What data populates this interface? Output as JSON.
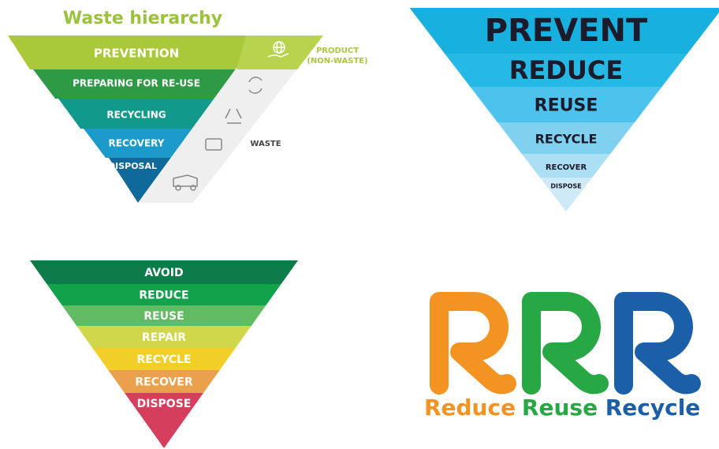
{
  "waste_hierarchy": {
    "title": "Waste hierarchy",
    "levels": [
      "PREVENTION",
      "PREPARING FOR RE-USE",
      "RECYCLING",
      "RECOVERY",
      "DISPOSAL"
    ],
    "product_label": [
      "PRODUCT",
      "(NON-WASTE)"
    ],
    "waste_label": "WASTE"
  },
  "prevent_pyramid": {
    "levels": [
      "PREVENT",
      "REDUCE",
      "REUSE",
      "RECYCLE",
      "RECOVER",
      "DISPOSE"
    ]
  },
  "avoid_pyramid": {
    "levels": [
      "AVOID",
      "REDUCE",
      "REUSE",
      "REPAIR",
      "RECYCLE",
      "RECOVER",
      "DISPOSE"
    ]
  },
  "rrr_logo": {
    "words": [
      "Reduce",
      "Reuse",
      "Recycle"
    ]
  }
}
